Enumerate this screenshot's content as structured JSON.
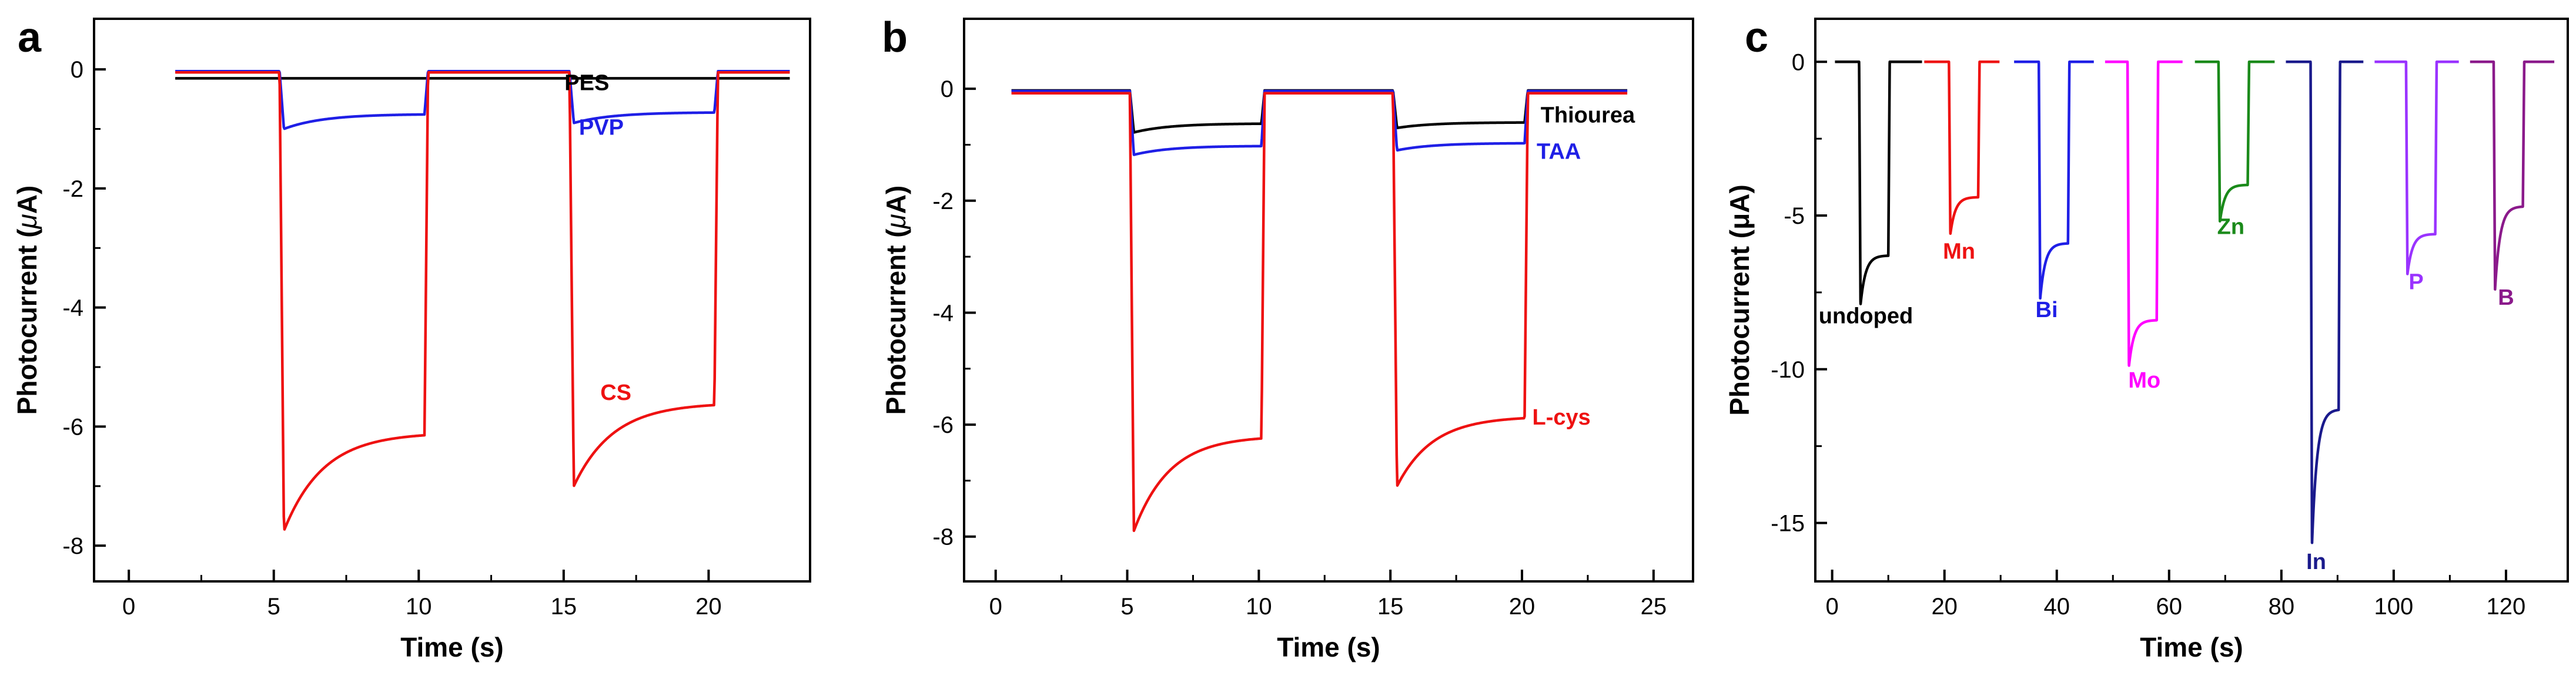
{
  "chart_data": [
    {
      "panel": "a",
      "type": "line",
      "title": "",
      "xlabel": "Time (s)",
      "ylabel_prefix": "Photocurrent (",
      "ylabel_unit_greek": "μ",
      "ylabel_suffix": "A)",
      "xlim": [
        -1.2,
        23.5
      ],
      "ylim": [
        -8.6,
        0.85
      ],
      "xticks": [
        0,
        5,
        10,
        15,
        20
      ],
      "yticks": [
        0,
        -2,
        -4,
        -6,
        -8
      ],
      "series": [
        {
          "name": "PES",
          "color": "#000000",
          "dark": -0.15,
          "start": 1.6,
          "end": 22.8,
          "periods": [
            [
              5.2,
              10.2,
              0.15
            ],
            [
              15.2,
              20.2,
              0.15
            ]
          ],
          "spikes": [
            0,
            0
          ]
        },
        {
          "name": "PVP",
          "color": "#1f1fe6",
          "dark": -0.03,
          "start": 1.6,
          "end": 22.8,
          "periods": [
            [
              5.2,
              10.2,
              0.75
            ],
            [
              15.2,
              20.2,
              0.72
            ]
          ],
          "spikes": [
            1.0,
            0.9
          ]
        },
        {
          "name": "CS",
          "color": "#ee1111",
          "dark": -0.05,
          "start": 1.6,
          "end": 22.8,
          "periods": [
            [
              5.2,
              10.2,
              6.1
            ],
            [
              15.2,
              20.2,
              5.6
            ]
          ],
          "spikes": [
            7.75,
            7.0
          ]
        }
      ],
      "annotations": [
        {
          "text": "PES",
          "x": 15.8,
          "y": -0.35,
          "color": "#000000"
        },
        {
          "text": "PVP",
          "x": 16.3,
          "y": -1.1,
          "color": "#1f1fe6"
        },
        {
          "text": "CS",
          "x": 16.8,
          "y": -5.55,
          "color": "#ee1111"
        }
      ]
    },
    {
      "panel": "b",
      "type": "line",
      "title": "",
      "xlabel": "Time (s)",
      "ylabel_prefix": "Photocurrent (",
      "ylabel_unit_greek": "μ",
      "ylabel_suffix": "A)",
      "xlim": [
        -1.2,
        26.5
      ],
      "ylim": [
        -8.8,
        1.25
      ],
      "xticks": [
        0,
        5,
        10,
        15,
        20,
        25
      ],
      "yticks": [
        0,
        -2,
        -4,
        -6,
        -8
      ],
      "series": [
        {
          "name": "Thiourea",
          "color": "#000000",
          "dark": -0.03,
          "start": 0.6,
          "end": 24.0,
          "periods": [
            [
              5.1,
              10.1,
              0.62
            ],
            [
              15.1,
              20.1,
              0.6
            ]
          ],
          "spikes": [
            0.78,
            0.7
          ]
        },
        {
          "name": "TAA",
          "color": "#1f1fe6",
          "dark": -0.04,
          "start": 0.6,
          "end": 24.0,
          "periods": [
            [
              5.1,
              10.1,
              1.02
            ],
            [
              15.1,
              20.1,
              0.97
            ]
          ],
          "spikes": [
            1.18,
            1.1
          ]
        },
        {
          "name": "L-cys",
          "color": "#ee1111",
          "dark": -0.08,
          "start": 0.6,
          "end": 24.0,
          "periods": [
            [
              5.1,
              10.1,
              6.2
            ],
            [
              15.1,
              20.1,
              5.85
            ]
          ],
          "spikes": [
            7.9,
            7.1
          ]
        }
      ],
      "annotations": [
        {
          "text": "Thiourea",
          "x": 22.5,
          "y": -0.6,
          "color": "#000000"
        },
        {
          "text": "TAA",
          "x": 21.4,
          "y": -1.25,
          "color": "#1f1fe6"
        },
        {
          "text": "L-cys",
          "x": 21.5,
          "y": -6.0,
          "color": "#ee1111"
        }
      ]
    },
    {
      "panel": "c",
      "type": "line",
      "title": "",
      "xlabel": "Time (s)",
      "ylabel": "Photocurrent (μA)",
      "xlim": [
        -3,
        131
      ],
      "ylim": [
        -16.9,
        1.4
      ],
      "xticks": [
        0,
        20,
        40,
        60,
        80,
        100,
        120
      ],
      "yticks": [
        0,
        -5,
        -10,
        -15
      ],
      "series": [
        {
          "name": "undoped",
          "color": "#000000",
          "on": 4.8,
          "off": 10.0,
          "steady": 6.3,
          "spike": 7.9,
          "start": 0.5,
          "end": 16.0
        },
        {
          "name": "Mn",
          "color": "#ee1111",
          "on": 20.8,
          "off": 26.0,
          "steady": 4.4,
          "spike": 5.6,
          "start": 16.4,
          "end": 29.8
        },
        {
          "name": "Bi",
          "color": "#1f1fe6",
          "on": 36.8,
          "off": 42.0,
          "steady": 5.9,
          "spike": 7.7,
          "start": 32.4,
          "end": 46.6
        },
        {
          "name": "Mo",
          "color": "#ff00ff",
          "on": 52.6,
          "off": 57.8,
          "steady": 8.4,
          "spike": 9.9,
          "start": 48.6,
          "end": 62.4
        },
        {
          "name": "Zn",
          "color": "#1a8a1a",
          "on": 68.8,
          "off": 74.0,
          "steady": 4.0,
          "spike": 5.2,
          "start": 64.6,
          "end": 78.8
        },
        {
          "name": "In",
          "color": "#1a1a8c",
          "on": 85.2,
          "off": 90.2,
          "steady": 11.3,
          "spike": 15.7,
          "start": 80.8,
          "end": 94.6
        },
        {
          "name": "P",
          "color": "#9a33ff",
          "on": 102.2,
          "off": 107.4,
          "steady": 5.6,
          "spike": 6.9,
          "start": 96.6,
          "end": 111.6
        },
        {
          "name": "B",
          "color": "#8b1a8b",
          "on": 117.8,
          "off": 123.0,
          "steady": 4.7,
          "spike": 7.4,
          "start": 113.6,
          "end": 128.6
        }
      ],
      "annotations": [
        {
          "text": "undoped",
          "x": 6.0,
          "y": -8.5,
          "color": "#000000"
        },
        {
          "text": "Mn",
          "x": 22.6,
          "y": -6.4,
          "color": "#ee1111"
        },
        {
          "text": "Bi",
          "x": 38.2,
          "y": -8.3,
          "color": "#1f1fe6"
        },
        {
          "text": "Mo",
          "x": 55.6,
          "y": -10.6,
          "color": "#ff00ff"
        },
        {
          "text": "Zn",
          "x": 71.0,
          "y": -5.6,
          "color": "#1a8a1a"
        },
        {
          "text": "In",
          "x": 86.2,
          "y": -16.5,
          "color": "#1a1a8c"
        },
        {
          "text": "P",
          "x": 104.0,
          "y": -7.4,
          "color": "#9a33ff"
        },
        {
          "text": "B",
          "x": 120.0,
          "y": -7.9,
          "color": "#8b1a8b"
        }
      ]
    }
  ]
}
